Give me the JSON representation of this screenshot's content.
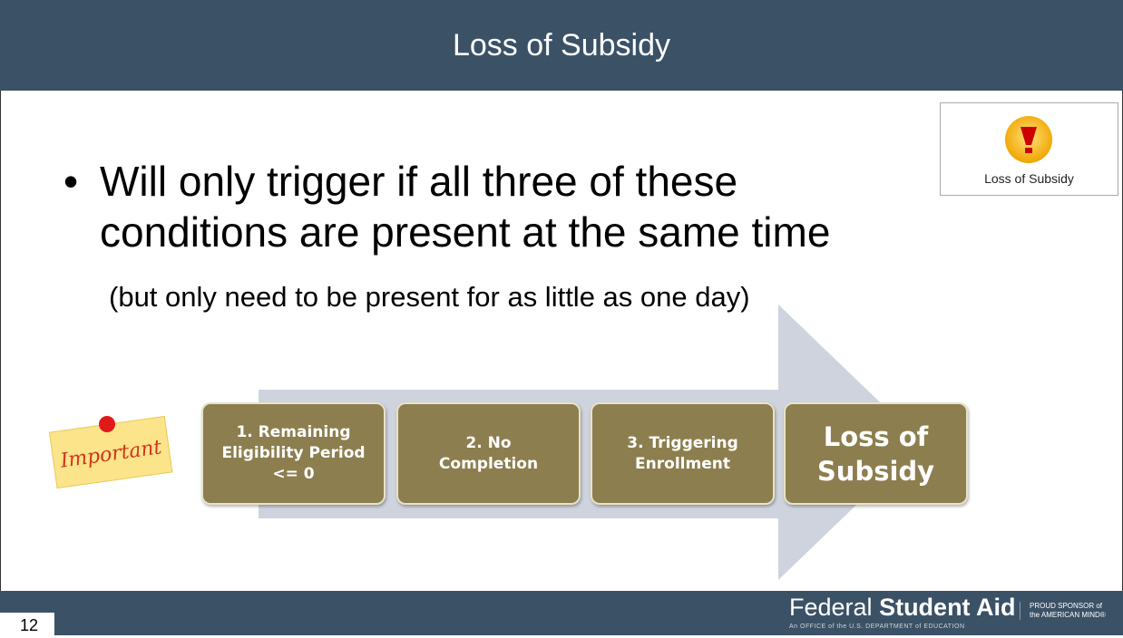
{
  "header": {
    "title": "Loss of Subsidy"
  },
  "badge": {
    "label": "Loss of Subsidy"
  },
  "bullet": {
    "lines": [
      "Will only trigger if all three of these",
      "conditions are present at the same time"
    ]
  },
  "note": "(but only need to be present for as little as one day)",
  "sticky": "Important",
  "steps": [
    {
      "lines": [
        "1. Remaining",
        "Eligibility Period",
        "<= 0"
      ]
    },
    {
      "lines": [
        "2. No",
        "Completion"
      ]
    },
    {
      "lines": [
        "3. Triggering",
        "Enrollment"
      ]
    },
    {
      "lines": [
        "Loss of",
        "Subsidy"
      ]
    }
  ],
  "footer": {
    "brand_light": "Federal",
    "brand_bold": "Student Aid",
    "tagline": "An OFFICE of the U.S. DEPARTMENT of EDUCATION",
    "sponsor": [
      "PROUD SPONSOR of",
      "the AMERICAN MIND®"
    ],
    "page_number": "12"
  }
}
